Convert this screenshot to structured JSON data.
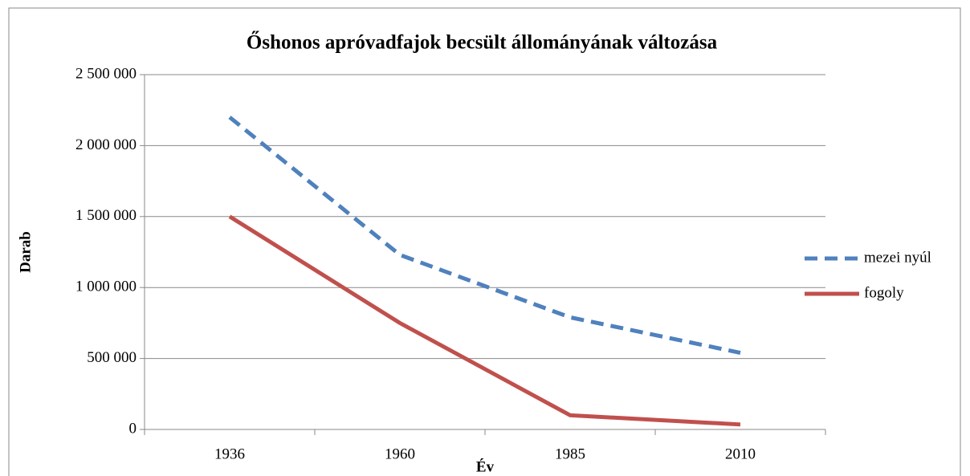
{
  "chart_data": {
    "type": "line",
    "title": "Őshonos apróvadfajok becsült állományának változása",
    "x_label": "Év",
    "y_label": "Darab",
    "categories": [
      "1936",
      "1960",
      "1985",
      "2010"
    ],
    "series": [
      {
        "name": "mezei nyúl",
        "color": "#4f81bd",
        "dash": true,
        "values": [
          2200000,
          1230000,
          790000,
          540000
        ]
      },
      {
        "name": "fogoly",
        "color": "#c0504d",
        "dash": false,
        "values": [
          1500000,
          750000,
          100000,
          35000
        ]
      }
    ],
    "ylim": [
      0,
      2500000
    ],
    "yticks": [
      0,
      {
        "value": 500000,
        "label": "500 000"
      },
      {
        "value": 1000000,
        "label": "1 000 000"
      },
      {
        "value": 1500000,
        "label": "1 500 000"
      },
      {
        "value": 2000000,
        "label": "2 000 000"
      },
      {
        "value": 2500000,
        "label": "2 500 000"
      }
    ],
    "grid": true,
    "legend": "right"
  }
}
